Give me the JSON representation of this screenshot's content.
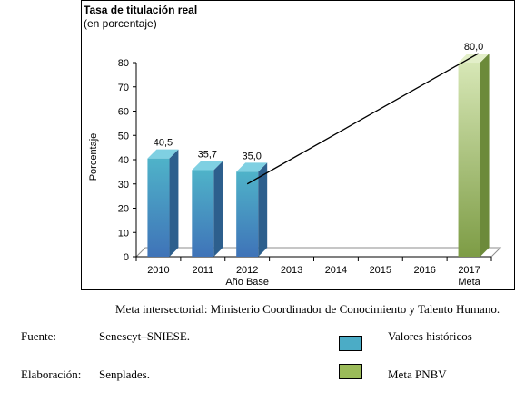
{
  "chart_data": {
    "type": "bar",
    "title": "Tasa de titulación real",
    "subtitle": "(en porcentaje)",
    "ylabel": "Porcentaje",
    "ylim": [
      0,
      80
    ],
    "yticks": [
      "0",
      "10",
      "20",
      "30",
      "40",
      "50",
      "60",
      "70",
      "80"
    ],
    "categories": [
      "2010",
      "2011",
      "2012",
      "2013",
      "2014",
      "2015",
      "2016",
      "2017"
    ],
    "category_sublabels": [
      "",
      "",
      "Año Base",
      "",
      "",
      "",
      "",
      "Meta"
    ],
    "series": [
      {
        "name": "Valores históricos",
        "color": "#4bacc6",
        "values": [
          40.5,
          35.7,
          35.0,
          null,
          null,
          null,
          null,
          null
        ],
        "labels": [
          "40,5",
          "35,7",
          "35,0",
          "",
          "",
          "",
          "",
          ""
        ]
      },
      {
        "name": "Meta PNBV",
        "color": "#9bbb59",
        "values": [
          null,
          null,
          null,
          null,
          null,
          null,
          null,
          80.0
        ],
        "labels": [
          "",
          "",
          "",
          "",
          "",
          "",
          "",
          "80,0"
        ]
      }
    ],
    "trend_line": {
      "from": [
        "2012",
        30
      ],
      "to": [
        "2017",
        80
      ]
    },
    "grid": false
  },
  "notes": {
    "meta": "Meta intersectorial: Ministerio Coordinador de Conocimiento y Talento Humano.",
    "fuente_label": "Fuente:",
    "fuente_value": "Senescyt–SNIESE.",
    "elaboracion_label": "Elaboración:",
    "elaboracion_value": "Senplades."
  },
  "legend": {
    "historicos": {
      "label": "Valores históricos",
      "color": "#4bacc6"
    },
    "meta": {
      "label": "Meta PNBV",
      "color": "#9bbb59"
    }
  }
}
